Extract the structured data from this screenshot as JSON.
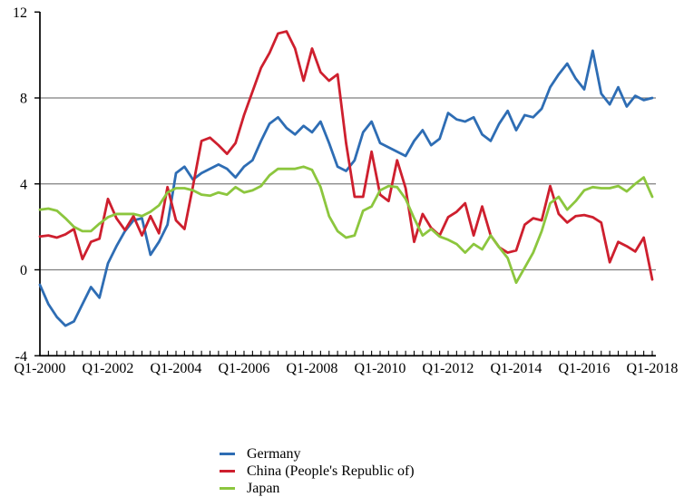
{
  "chart_data": {
    "type": "line",
    "title": "",
    "xlabel": "",
    "ylabel": "",
    "frequency": "quarterly",
    "x_start": "Q1-2000",
    "x_end": "Q1-2018",
    "n_points": 73,
    "ylim": [
      -4,
      12
    ],
    "y_ticks": [
      12,
      8,
      4,
      0,
      -4
    ],
    "grid_values": [
      8,
      4,
      0
    ],
    "x_tick_labels": [
      "Q1-2000",
      "Q1-2002",
      "Q1-2004",
      "Q1-2006",
      "Q1-2008",
      "Q1-2010",
      "Q1-2012",
      "Q1-2014",
      "Q1-2016",
      "Q1-2018"
    ],
    "legend_position": "bottom",
    "grid": true,
    "colors": {
      "gridline": "#7F7F7F",
      "axis": "#000000",
      "text": "#000000"
    },
    "series": [
      {
        "name": "Germany",
        "key": "germany",
        "color": "#2E6DB4",
        "values": [
          -0.7,
          -1.6,
          -2.2,
          -2.6,
          -2.4,
          -1.6,
          -0.8,
          -1.3,
          0.3,
          1.1,
          1.8,
          2.3,
          2.4,
          0.7,
          1.3,
          2.1,
          4.5,
          4.8,
          4.2,
          4.5,
          4.7,
          4.9,
          4.7,
          4.3,
          4.8,
          5.1,
          6.0,
          6.8,
          7.1,
          6.6,
          6.3,
          6.7,
          6.4,
          6.9,
          5.9,
          4.8,
          4.6,
          5.1,
          6.4,
          6.9,
          5.9,
          5.7,
          5.5,
          5.3,
          6.0,
          6.5,
          5.8,
          6.1,
          7.3,
          7.0,
          6.9,
          7.1,
          6.3,
          6.0,
          6.8,
          7.4,
          6.5,
          7.2,
          7.1,
          7.5,
          8.5,
          9.1,
          9.6,
          8.9,
          8.4,
          10.2,
          8.2,
          7.7,
          8.5,
          7.6,
          8.1,
          7.9,
          8.0
        ]
      },
      {
        "name": "China (People's Republic of)",
        "key": "china",
        "color": "#CE1F2E",
        "values": [
          1.55,
          1.6,
          1.5,
          1.65,
          1.9,
          0.5,
          1.3,
          1.45,
          3.3,
          2.4,
          1.85,
          2.5,
          1.6,
          2.5,
          1.7,
          3.85,
          2.3,
          1.9,
          3.9,
          6.0,
          6.15,
          5.8,
          5.4,
          5.9,
          7.2,
          8.3,
          9.4,
          10.1,
          11.0,
          11.1,
          10.3,
          8.8,
          10.3,
          9.2,
          8.8,
          9.1,
          5.9,
          3.4,
          3.4,
          5.5,
          3.5,
          3.2,
          5.1,
          3.8,
          1.3,
          2.6,
          1.95,
          1.6,
          2.45,
          2.7,
          3.1,
          1.6,
          2.95,
          1.6,
          1.05,
          0.8,
          0.9,
          2.1,
          2.4,
          2.3,
          3.9,
          2.6,
          2.2,
          2.5,
          2.55,
          2.45,
          2.2,
          0.35,
          1.3,
          1.1,
          0.85,
          1.5,
          -0.45
        ]
      },
      {
        "name": "Japan",
        "key": "japan",
        "color": "#8CC63E",
        "values": [
          2.8,
          2.85,
          2.75,
          2.4,
          2.0,
          1.8,
          1.8,
          2.15,
          2.45,
          2.6,
          2.6,
          2.6,
          2.5,
          2.7,
          3.0,
          3.6,
          3.8,
          3.8,
          3.7,
          3.5,
          3.45,
          3.6,
          3.5,
          3.85,
          3.6,
          3.7,
          3.9,
          4.4,
          4.7,
          4.7,
          4.7,
          4.8,
          4.65,
          3.85,
          2.5,
          1.8,
          1.5,
          1.6,
          2.75,
          2.95,
          3.7,
          3.9,
          3.85,
          3.3,
          2.4,
          1.6,
          1.9,
          1.55,
          1.4,
          1.2,
          0.8,
          1.2,
          0.95,
          1.6,
          1.05,
          0.55,
          -0.6,
          0.1,
          0.8,
          1.8,
          3.1,
          3.4,
          2.8,
          3.2,
          3.7,
          3.85,
          3.8,
          3.8,
          3.9,
          3.65,
          4.0,
          4.3,
          3.4
        ]
      }
    ]
  }
}
